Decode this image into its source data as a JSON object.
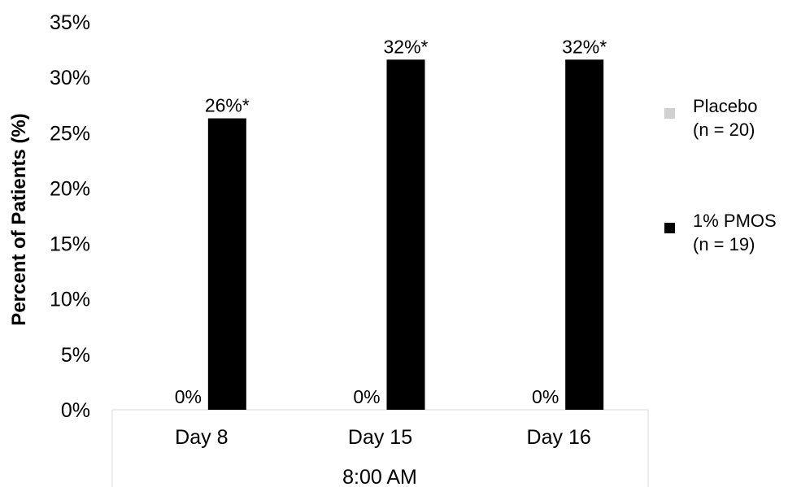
{
  "chart_data": {
    "type": "bar",
    "ylabel": "Percent of Patients (%)",
    "xlabel": "8:00 AM",
    "categories": [
      "Day 8",
      "Day 15",
      "Day 16"
    ],
    "ylim": [
      0,
      35
    ],
    "yticks": [
      "0%",
      "5%",
      "10%",
      "15%",
      "20%",
      "25%",
      "30%",
      "35%"
    ],
    "grid": false,
    "legend_position": "right",
    "series": [
      {
        "name_line1": "Placebo",
        "name_line2": "(n = 20)",
        "color": "#d0d0d0",
        "values": [
          0,
          0,
          0
        ],
        "labels": [
          "0%",
          "0%",
          "0%"
        ]
      },
      {
        "name_line1": "1% PMOS",
        "name_line2": "(n = 19)",
        "color": "#000000",
        "values": [
          26.3,
          31.6,
          31.6
        ],
        "labels": [
          "26%*",
          "32%*",
          "32%*"
        ]
      }
    ]
  }
}
